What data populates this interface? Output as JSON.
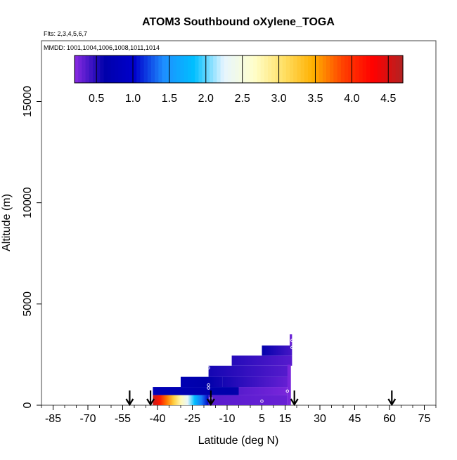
{
  "chart_data": {
    "type": "heatmap",
    "title": "ATOM3 Southbound oXylene_TOGA",
    "flights_label": "Flts: 2,3,4,5,6,7",
    "mmdd_label": "MMDD: 1001,1004,1006,1008,1011,1014",
    "xlabel": "Latitude (deg N)",
    "ylabel": "Altitude (m)",
    "xlim": [
      -90,
      80
    ],
    "ylim": [
      0,
      18000
    ],
    "xticks": [
      -85,
      -70,
      -55,
      -40,
      -25,
      -10,
      5,
      15,
      30,
      45,
      60,
      75
    ],
    "xtick_labels": [
      "-85",
      "-70",
      "-55",
      "-40",
      "-25",
      "-10",
      "5",
      "15",
      "30",
      "45",
      "60",
      "75"
    ],
    "yticks": [
      0,
      5000,
      10000,
      15000
    ],
    "ytick_labels": [
      "0",
      "5000",
      "10000",
      "15000"
    ],
    "colorbar": {
      "range": [
        0.2,
        4.7
      ],
      "ticks": [
        0.5,
        1.0,
        1.5,
        2.0,
        2.5,
        3.0,
        3.5,
        4.0,
        4.5
      ],
      "tick_labels": [
        "0.5",
        "1.0",
        "1.5",
        "2.0",
        "2.5",
        "3.0",
        "3.5",
        "4.0",
        "4.5"
      ],
      "stops": [
        "#8a2be2",
        "#0000aa",
        "#0000cc",
        "#1e90ff",
        "#00bfff",
        "#e6f5ff",
        "#ffffcc",
        "#ffe066",
        "#ffb000",
        "#ff4000",
        "#ff0000",
        "#b22222"
      ]
    },
    "arrows_lat": [
      -52,
      -43,
      -17,
      19,
      61
    ],
    "cells": [
      {
        "lat0": -42,
        "lat1": -18,
        "alt0": 0,
        "alt1": 500,
        "v0": 4.6,
        "v1": 0.9
      },
      {
        "lat0": -18,
        "lat1": 16,
        "alt0": 0,
        "alt1": 500,
        "v0": 0.35,
        "v1": 0.3
      },
      {
        "lat0": -42,
        "lat1": -5,
        "alt0": 500,
        "alt1": 900,
        "v0": 0.75,
        "v1": 0.6
      },
      {
        "lat0": -5,
        "lat1": 16,
        "alt0": 500,
        "alt1": 900,
        "v0": 0.35,
        "v1": 0.25
      },
      {
        "lat0": -30,
        "lat1": -12,
        "alt0": 900,
        "alt1": 1400,
        "v0": 0.7,
        "v1": 0.55
      },
      {
        "lat0": -12,
        "lat1": 17,
        "alt0": 900,
        "alt1": 1400,
        "v0": 0.55,
        "v1": 0.3
      },
      {
        "lat0": -18,
        "lat1": 17,
        "alt0": 1400,
        "alt1": 1950,
        "v0": 0.55,
        "v1": 0.35
      },
      {
        "lat0": -8,
        "lat1": 18,
        "alt0": 1950,
        "alt1": 2450,
        "v0": 0.5,
        "v1": 0.35
      },
      {
        "lat0": 5,
        "lat1": 18,
        "alt0": 2450,
        "alt1": 2950,
        "v0": 0.6,
        "v1": 0.4
      },
      {
        "lat0": 17,
        "lat1": 18,
        "alt0": 2950,
        "alt1": 3500,
        "v0": 0.3,
        "v1": 0.3
      },
      {
        "lat0": 16,
        "lat1": 17.5,
        "alt0": 0,
        "alt1": 2000,
        "v0": 0.25,
        "v1": 0.25
      }
    ],
    "markers": [
      {
        "lat": -18,
        "alt": 1850
      },
      {
        "lat": -18,
        "alt": 1000
      },
      {
        "lat": -18,
        "alt": 850
      },
      {
        "lat": -17,
        "alt": 350
      },
      {
        "lat": 5,
        "alt": 200
      },
      {
        "lat": 16,
        "alt": 700
      },
      {
        "lat": 18,
        "alt": 2850
      },
      {
        "lat": 18,
        "alt": 3200
      }
    ]
  }
}
